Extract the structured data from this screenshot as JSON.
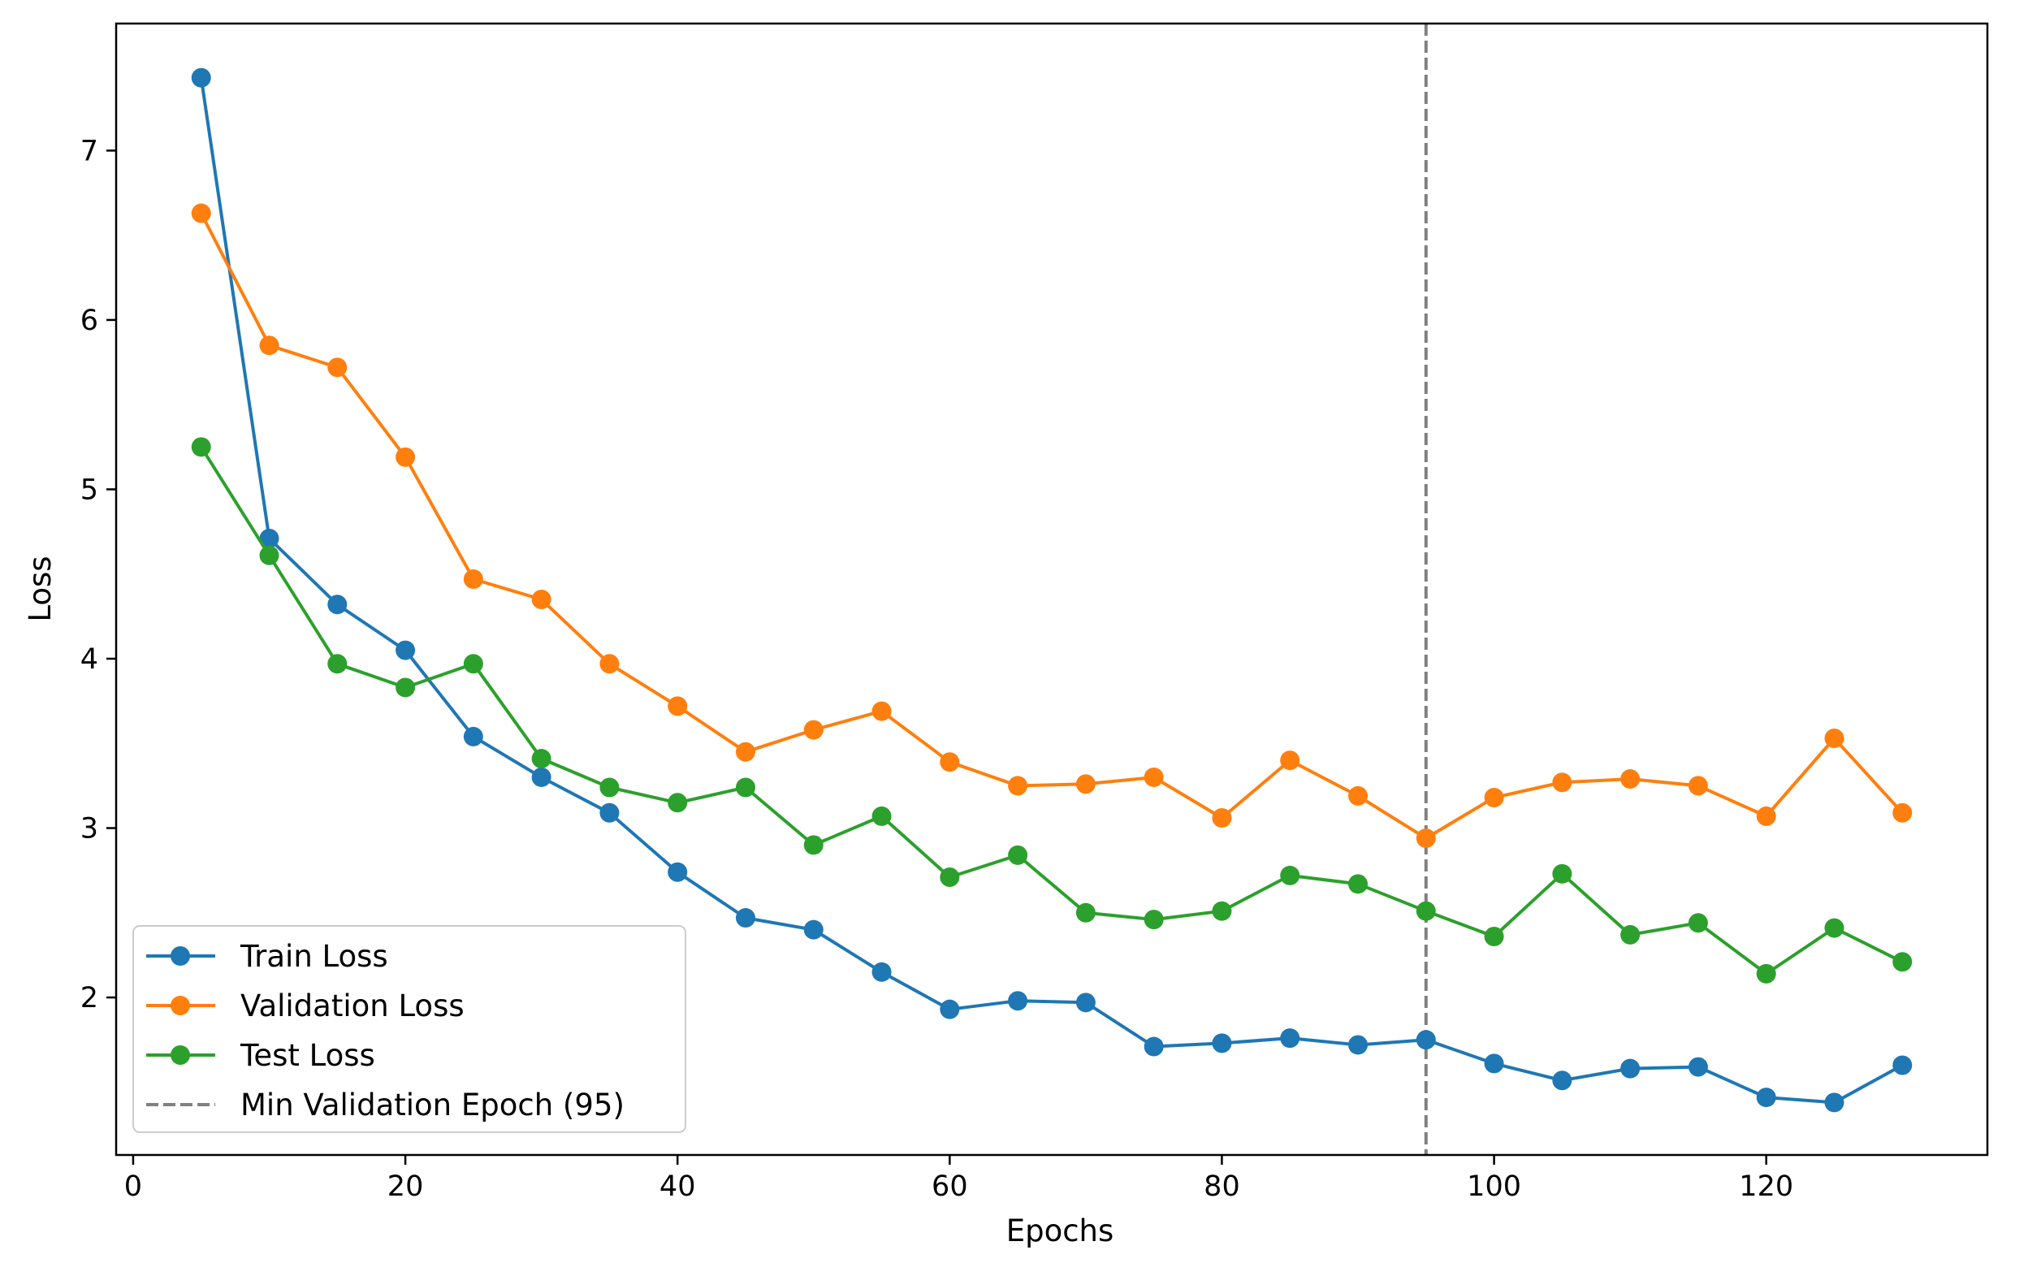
{
  "chart_data": {
    "type": "line",
    "title": "",
    "xlabel": "Epochs",
    "ylabel": "Loss",
    "xlim": [
      -1.25,
      136.25
    ],
    "ylim": [
      1.07,
      7.75
    ],
    "xticks": [
      0,
      20,
      40,
      60,
      80,
      100,
      120
    ],
    "yticks": [
      2,
      3,
      4,
      5,
      6,
      7
    ],
    "grid": false,
    "legend_position": "lower-left",
    "x": [
      5,
      10,
      15,
      20,
      25,
      30,
      35,
      40,
      45,
      50,
      55,
      60,
      65,
      70,
      75,
      80,
      85,
      90,
      95,
      100,
      105,
      110,
      115,
      120,
      125,
      130
    ],
    "series": [
      {
        "name": "Train Loss",
        "color": "#1f77b4",
        "values": [
          7.43,
          4.71,
          4.32,
          4.05,
          3.54,
          3.3,
          3.09,
          2.74,
          2.47,
          2.4,
          2.15,
          1.93,
          1.98,
          1.97,
          1.71,
          1.73,
          1.76,
          1.72,
          1.75,
          1.61,
          1.51,
          1.58,
          1.59,
          1.41,
          1.38,
          1.6
        ]
      },
      {
        "name": "Validation Loss",
        "color": "#ff7f0e",
        "values": [
          6.63,
          5.85,
          5.72,
          5.19,
          4.47,
          4.35,
          3.97,
          3.72,
          3.45,
          3.58,
          3.69,
          3.39,
          3.25,
          3.26,
          3.3,
          3.06,
          3.4,
          3.19,
          2.94,
          3.18,
          3.27,
          3.29,
          3.25,
          3.07,
          3.53,
          3.09
        ]
      },
      {
        "name": "Test Loss",
        "color": "#2ca02c",
        "values": [
          5.25,
          4.61,
          3.97,
          3.83,
          3.97,
          3.41,
          3.24,
          3.15,
          3.24,
          2.9,
          3.07,
          2.71,
          2.84,
          2.5,
          2.46,
          2.51,
          2.72,
          2.67,
          2.51,
          2.36,
          2.73,
          2.37,
          2.44,
          2.14,
          2.41,
          2.21
        ]
      }
    ],
    "reference_line": {
      "name": "Min Validation Epoch (95)",
      "x": 95,
      "color": "#808080",
      "style": "dashed"
    }
  }
}
